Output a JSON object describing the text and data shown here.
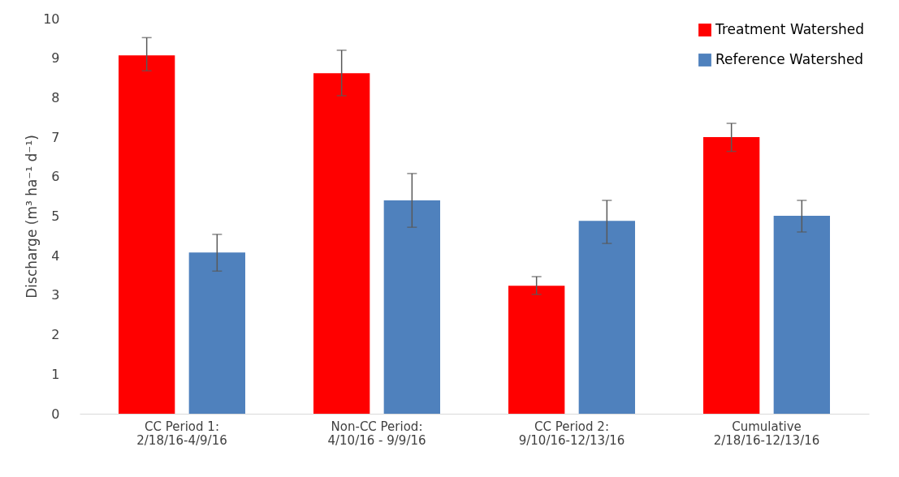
{
  "chart_data": {
    "type": "bar",
    "ylabel": "Discharge (m³ ha⁻¹ d⁻¹)",
    "categories": [
      "CC Period 1:  2/18/16-4/9/16",
      "Non-CC Period:  4/10/16 - 9/9/16",
      "CC Period 2:  9/10/16-12/13/16",
      "Cumulative 2/18/16-12/13/16"
    ],
    "series": [
      {
        "name": "Treatment Watershed",
        "color": "#ff0000",
        "values": [
          9.07,
          8.62,
          3.24,
          7.0
        ],
        "errors": [
          [
            8.68,
            9.52
          ],
          [
            8.05,
            9.2
          ],
          [
            3.02,
            3.47
          ],
          [
            6.64,
            7.35
          ]
        ]
      },
      {
        "name": "Reference Watershed",
        "color": "#4f81bd",
        "values": [
          4.08,
          5.4,
          4.88,
          5.01
        ],
        "errors": [
          [
            3.61,
            4.54
          ],
          [
            4.72,
            6.08
          ],
          [
            4.31,
            5.4
          ],
          [
            4.6,
            5.4
          ]
        ]
      }
    ],
    "ylim": [
      0,
      10
    ],
    "yticks": [
      0,
      1,
      2,
      3,
      4,
      5,
      6,
      7,
      8,
      9,
      10
    ],
    "grid": false,
    "legend": "top right"
  }
}
